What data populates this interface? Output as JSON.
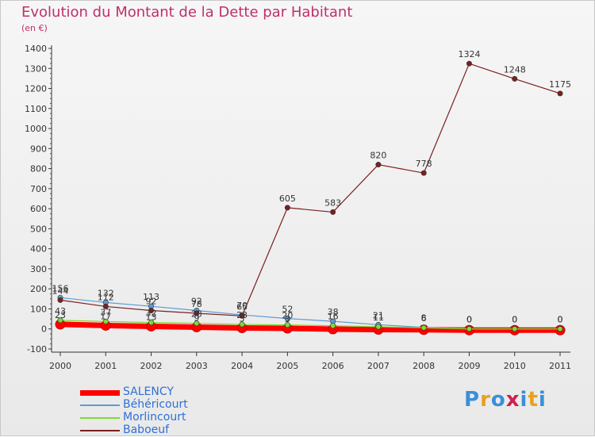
{
  "chart_data": {
    "type": "line",
    "title": "Evolution du Montant de la Dette par Habitant",
    "subtitle": "(en €)",
    "categories": [
      "2000",
      "2001",
      "2002",
      "2003",
      "2004",
      "2005",
      "2006",
      "2007",
      "2008",
      "2009",
      "2010",
      "2011"
    ],
    "ylim": [
      -100,
      1400
    ],
    "yticks": [
      -100,
      0,
      100,
      200,
      300,
      400,
      500,
      600,
      700,
      800,
      900,
      1000,
      1100,
      1200,
      1300,
      1400
    ],
    "grid": false,
    "legend_position": "bottom-left",
    "series": [
      {
        "name": "SALENCY",
        "color": "#ff0000",
        "values": [
          23,
          17,
          13,
          9,
          5,
          3,
          -1,
          -3,
          -4,
          -6,
          -6,
          -6
        ],
        "labels": [
          "23",
          "17",
          "13",
          "9",
          "5",
          "3",
          "",
          "",
          "",
          "",
          "",
          ""
        ]
      },
      {
        "name": "Béhéricourt",
        "color": "#5b9bd5",
        "values": [
          156,
          132,
          113,
          92,
          70,
          52,
          38,
          21,
          8,
          0,
          0,
          0
        ],
        "labels": [
          "156",
          "132",
          "113",
          "92",
          "70",
          "52",
          "38",
          "21",
          "8",
          "0",
          "0",
          "0"
        ]
      },
      {
        "name": "Morlincourt",
        "color": "#7ddc32",
        "values": [
          43,
          37,
          32,
          28,
          23,
          20,
          16,
          11,
          6,
          0,
          0,
          0
        ],
        "labels": [
          "43",
          "37",
          "32",
          "28",
          "23",
          "20",
          "16",
          "11",
          "6",
          "0",
          "0",
          "0"
        ]
      },
      {
        "name": "Baboeuf",
        "color": "#7b1f1f",
        "values": [
          144,
          112,
          92,
          78,
          65,
          605,
          583,
          820,
          778,
          1324,
          1248,
          1175
        ],
        "labels": [
          "144",
          "112",
          "92",
          "78",
          "65",
          "605",
          "583",
          "820",
          "778",
          "1324",
          "1248",
          "1175"
        ]
      }
    ]
  },
  "logo_text": "Proxiti",
  "logo_colors": [
    "#3a8fd8",
    "#e8a020",
    "#3a8fd8",
    "#d02050",
    "#3a8fd8",
    "#e8a020",
    "#3a8fd8"
  ]
}
